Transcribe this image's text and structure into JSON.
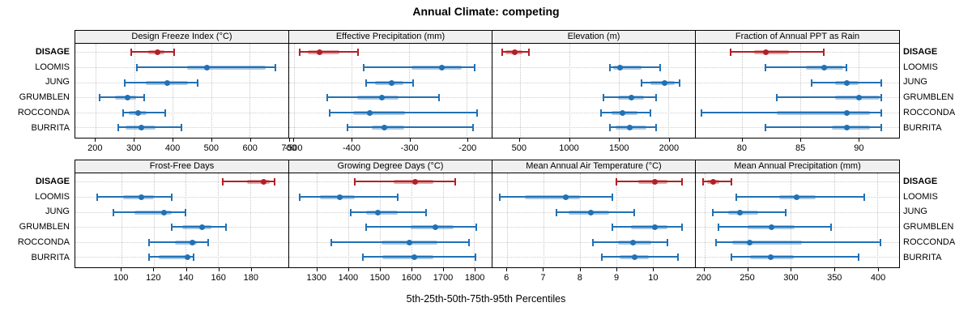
{
  "title": "Annual Climate: competing",
  "xlabel": "5th-25th-50th-75th-95th Percentiles",
  "colors": {
    "highlight": "#B22025",
    "base": "#2171B5",
    "grid": "#C6C6C6",
    "strip_bg": "#F0F0F0",
    "border": "#000000"
  },
  "chart_data": {
    "type": "interval-dotplot",
    "layout": {
      "rows": 2,
      "cols": 4,
      "grid": "dotted",
      "row_labels_both_sides": true
    },
    "percentiles": [
      5,
      25,
      50,
      75,
      95
    ],
    "sites": [
      "DISAGE",
      "LOOMIS",
      "JUNG",
      "GRUMBLEN",
      "ROCCONDA",
      "BURRITA"
    ],
    "highlight_site": "DISAGE",
    "panels": [
      {
        "title": "Design Freeze Index (°C)",
        "xlim": [
          147,
          701
        ],
        "ticks": [
          200,
          300,
          400,
          500,
          600,
          700
        ],
        "values": [
          [
            293,
            336,
            359,
            378,
            403
          ],
          [
            308,
            437,
            489,
            643,
            667
          ],
          [
            276,
            330,
            386,
            440,
            466
          ],
          [
            210,
            250,
            282,
            305,
            326
          ],
          [
            272,
            287,
            310,
            332,
            380
          ],
          [
            259,
            278,
            317,
            356,
            422
          ]
        ]
      },
      {
        "title": "Effective Precipitation (mm)",
        "xlim": [
          -509,
          -157
        ],
        "ticks": [
          -500,
          -400,
          -300,
          -200
        ],
        "values": [
          [
            -490,
            -477,
            -457,
            -422,
            -390
          ],
          [
            -380,
            -297,
            -244,
            -209,
            -187
          ],
          [
            -375,
            -360,
            -331,
            -310,
            -294
          ],
          [
            -443,
            -391,
            -349,
            -319,
            -249
          ],
          [
            -439,
            -398,
            -370,
            -307,
            -183
          ],
          [
            -407,
            -365,
            -344,
            -309,
            -189
          ]
        ]
      },
      {
        "title": "Elevation (m)",
        "xlim": [
          226,
          2268
        ],
        "ticks": [
          500,
          1000,
          1500,
          2000
        ],
        "values": [
          [
            320,
            360,
            448,
            528,
            590
          ],
          [
            1410,
            1445,
            1512,
            1730,
            1915
          ],
          [
            1730,
            1820,
            1958,
            2065,
            2115
          ],
          [
            1345,
            1490,
            1620,
            1750,
            1875
          ],
          [
            1320,
            1425,
            1530,
            1685,
            1820
          ],
          [
            1410,
            1465,
            1608,
            1780,
            1875
          ]
        ]
      },
      {
        "title": "Fraction of Annual PPT as Rain",
        "xlim": [
          76,
          93.5
        ],
        "ticks": [
          80,
          85,
          90
        ],
        "values": [
          [
            79,
            81,
            82,
            84,
            87
          ],
          [
            82,
            85.5,
            87,
            88.7,
            89
          ],
          [
            86,
            88,
            89,
            90,
            92
          ],
          [
            83,
            88,
            90,
            91.8,
            92
          ],
          [
            76.5,
            83,
            89,
            91,
            92
          ],
          [
            82,
            87.7,
            89,
            91,
            92
          ]
        ]
      },
      {
        "title": "Frost-Free Days",
        "xlim": [
          71.5,
          203.5
        ],
        "ticks": [
          100,
          120,
          140,
          160,
          180
        ],
        "values": [
          [
            163,
            178,
            188,
            192,
            195
          ],
          [
            85,
            101,
            112,
            120,
            131
          ],
          [
            95,
            108,
            126,
            131,
            140
          ],
          [
            131,
            138,
            150,
            156,
            165
          ],
          [
            117,
            133,
            144,
            147,
            154
          ],
          [
            117,
            123,
            141,
            143,
            145
          ]
        ]
      },
      {
        "title": "Growing Degree Days (°C)",
        "xlim": [
          1211,
          1856
        ],
        "ticks": [
          1300,
          1400,
          1500,
          1600,
          1700,
          1800
        ],
        "values": [
          [
            1420,
            1545,
            1612,
            1670,
            1740
          ],
          [
            1245,
            1310,
            1370,
            1420,
            1558
          ],
          [
            1407,
            1457,
            1493,
            1556,
            1647
          ],
          [
            1455,
            1598,
            1675,
            1735,
            1808
          ],
          [
            1345,
            1504,
            1594,
            1684,
            1785
          ],
          [
            1446,
            1508,
            1609,
            1670,
            1805
          ]
        ]
      },
      {
        "title": "Mean Annual Air Temperature (°C)",
        "xlim": [
          5.6,
          11.16
        ],
        "ticks": [
          6,
          7,
          8,
          9,
          10
        ],
        "values": [
          [
            9.0,
            9.6,
            10.05,
            10.4,
            10.8
          ],
          [
            5.8,
            6.5,
            7.6,
            8.0,
            8.9
          ],
          [
            7.35,
            7.7,
            8.3,
            8.8,
            9.5
          ],
          [
            8.9,
            9.4,
            10.05,
            10.4,
            10.8
          ],
          [
            8.35,
            9.05,
            9.45,
            9.95,
            10.4
          ],
          [
            8.6,
            9.1,
            9.5,
            9.9,
            10.7
          ]
        ]
      },
      {
        "title": "Mean Annual Precipitation (mm)",
        "xlim": [
          190,
          425
        ],
        "ticks": [
          200,
          250,
          300,
          350,
          400
        ],
        "values": [
          [
            198,
            203,
            210,
            217,
            231
          ],
          [
            237,
            286,
            306,
            329,
            385
          ],
          [
            210,
            227,
            241,
            262,
            294
          ],
          [
            216,
            250,
            277,
            304,
            346
          ],
          [
            213,
            232,
            252,
            313,
            403
          ],
          [
            231,
            253,
            276,
            303,
            378
          ]
        ]
      }
    ]
  }
}
